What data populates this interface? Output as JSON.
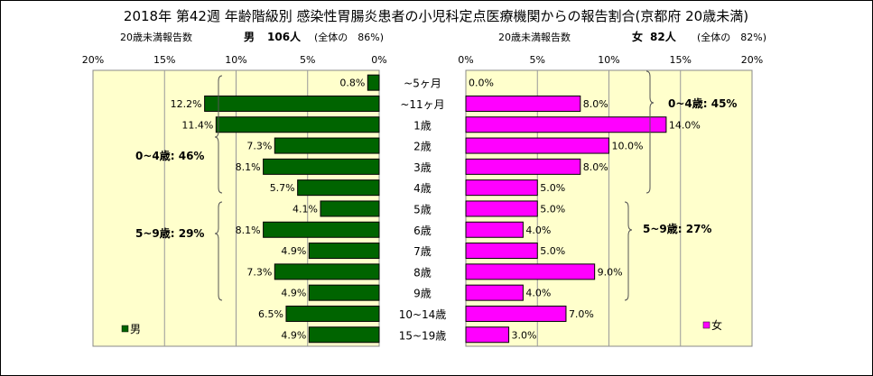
{
  "title": "2018年 第42週 年齢階級別 感染性胃腸炎患者の小児科定点医療機関からの報告割合(京都府 20歳未満)",
  "left_header": {
    "label": "20歳未満報告数",
    "group": "男",
    "count": "106人",
    "share": "(全体の　86%)"
  },
  "right_header": {
    "label": "20歳未満報告数",
    "group": "女",
    "count": "82人",
    "share": "(全体の　82%)"
  },
  "chart_data": {
    "type": "bar",
    "orientation": "horizontal-butterfly",
    "categories": [
      "~5ヶ月",
      "~11ヶ月",
      "1歳",
      "2歳",
      "3歳",
      "4歳",
      "5歳",
      "6歳",
      "7歳",
      "8歳",
      "9歳",
      "10~14歳",
      "15~19歳"
    ],
    "xlim": [
      0,
      20
    ],
    "x_tick_labels": [
      "0%",
      "5%",
      "10%",
      "15%",
      "20%"
    ],
    "left_series": {
      "name": "男",
      "color": "#006400",
      "values": [
        0.8,
        12.2,
        11.4,
        7.3,
        8.1,
        5.7,
        4.1,
        8.1,
        4.9,
        7.3,
        4.9,
        6.5,
        4.9
      ],
      "value_labels": [
        "0.8%",
        "12.2%",
        "11.4%",
        "7.3%",
        "8.1%",
        "5.7%",
        "4.1%",
        "8.1%",
        "4.9%",
        "7.3%",
        "4.9%",
        "6.5%",
        "4.9%"
      ],
      "legend": "男",
      "bracket_labels": [
        "0~4歳: 46%",
        "5~9歳: 29%"
      ]
    },
    "right_series": {
      "name": "女",
      "color": "#ff00ff",
      "values": [
        0.0,
        8.0,
        14.0,
        10.0,
        8.0,
        5.0,
        5.0,
        4.0,
        5.0,
        9.0,
        4.0,
        7.0,
        3.0
      ],
      "value_labels": [
        "0.0%",
        "8.0%",
        "14.0%",
        "10.0%",
        "8.0%",
        "5.0%",
        "5.0%",
        "4.0%",
        "5.0%",
        "9.0%",
        "4.0%",
        "7.0%",
        "3.0%"
      ],
      "legend": "女",
      "bracket_labels": [
        "0~4歳: 45%",
        "5~9歳: 27%"
      ]
    },
    "grid": true,
    "plot_background": "#ffffcc"
  }
}
